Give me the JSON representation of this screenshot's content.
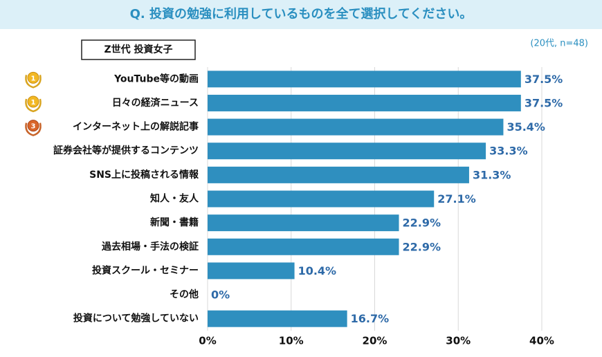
{
  "chart_data": {
    "type": "bar",
    "orientation": "horizontal",
    "title": "Q. 投資の勉強に利用しているものを全て選択してください。",
    "subtitle": "Z世代 投資女子",
    "note": "(20代, n=48)",
    "categories": [
      "YouTube等の動画",
      "日々の経済ニュース",
      "インターネット上の解説記事",
      "証券会社等が提供するコンテンツ",
      "SNS上に投稿される情報",
      "知人・友人",
      "新聞・書籍",
      "過去相場・手法の検証",
      "投資スクール・セミナー",
      "その他",
      "投資について勉強していない"
    ],
    "values": [
      37.5,
      37.5,
      35.4,
      33.3,
      31.3,
      27.1,
      22.9,
      22.9,
      10.4,
      0,
      16.7
    ],
    "value_labels": [
      "37.5%",
      "37.5%",
      "35.4%",
      "33.3%",
      "31.3%",
      "27.1%",
      "22.9%",
      "22.9%",
      "10.4%",
      "0%",
      "16.7%"
    ],
    "rank_badges": [
      "1",
      "1",
      "3"
    ],
    "color": "#2f8fbf",
    "xlim": [
      0,
      40
    ],
    "xticks": [
      {
        "value": 0,
        "label": "0%"
      },
      {
        "value": 10,
        "label": "10%"
      },
      {
        "value": 20,
        "label": "20%"
      },
      {
        "value": 30,
        "label": "30%"
      },
      {
        "value": 40,
        "label": "40%"
      }
    ],
    "grid": true
  }
}
